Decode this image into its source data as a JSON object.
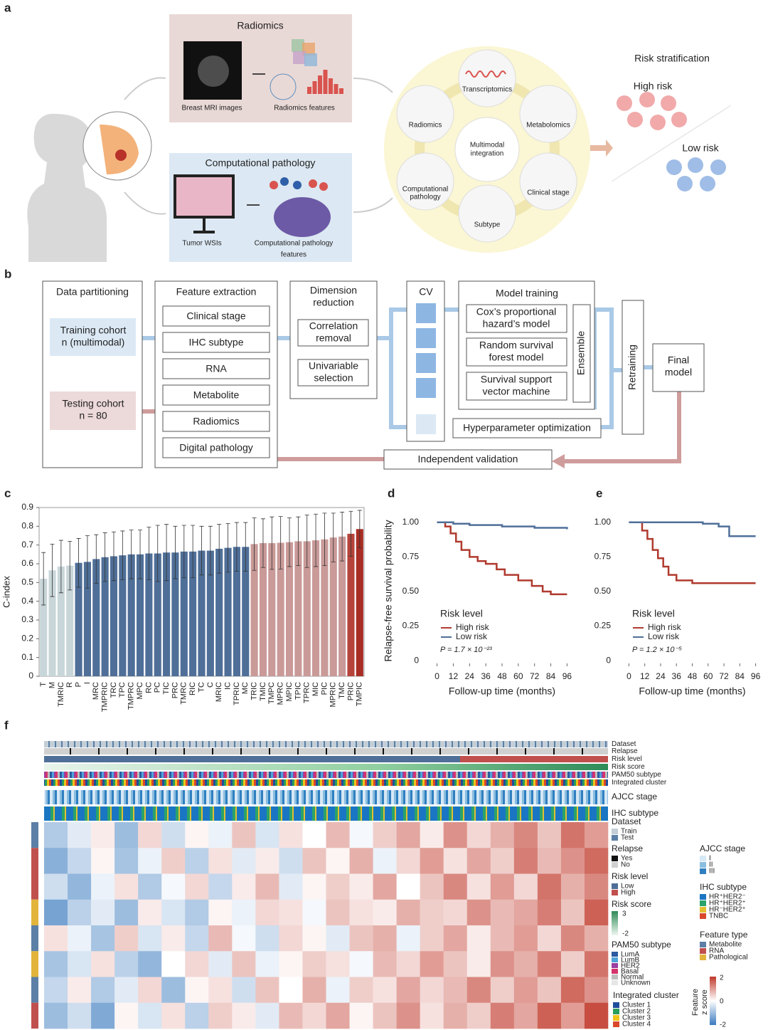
{
  "panel_labels": [
    "a",
    "b",
    "c",
    "d",
    "e",
    "f"
  ],
  "panel_a": {
    "radiomics_title": "Radiomics",
    "mri_label": "Breast MRI images",
    "radiomics_features": "Radiomics features",
    "pathology_title": "Computational pathology",
    "wsi_label": "Tumor WSIs",
    "pathology_features": [
      "Computational pathology",
      "features"
    ],
    "omics": [
      [
        "Transcriptomics"
      ],
      [
        "Metabolomics"
      ],
      [
        "Clinical stage"
      ],
      [
        "Subtype"
      ],
      [
        "Computational",
        "pathology"
      ],
      [
        "Radiomics"
      ]
    ],
    "center": [
      "Multimodal",
      "integration"
    ],
    "risk_title": "Risk stratification",
    "high": "High risk",
    "low": "Low risk"
  },
  "panel_b": {
    "partition_title": "Data partitioning",
    "training": [
      "Training cohort",
      "n (multimodal)"
    ],
    "testing": [
      "Testing cohort",
      "n = 80"
    ],
    "feature_title": "Feature extraction",
    "features": [
      "Clinical stage",
      "IHC subtype",
      "RNA",
      "Metabolite",
      "Radiomics",
      "Digital pathology"
    ],
    "dimension_title": [
      "Dimension",
      "reduction"
    ],
    "dimension_steps": [
      [
        "Correlation",
        "removal"
      ],
      [
        "Univariable",
        "selection"
      ]
    ],
    "cv": "CV",
    "model_title": "Model training",
    "models": [
      [
        "Cox’s proportional",
        "hazard’s model"
      ],
      [
        "Random survival",
        "forest model"
      ],
      [
        "Survival support",
        "vector machine"
      ]
    ],
    "ensemble": "Ensemble",
    "hyper": "Hyperparameter optimization",
    "retraining": "Retraining",
    "final": [
      "Final",
      "model"
    ],
    "validation": "Independent validation"
  },
  "chart_data": [
    {
      "type": "bar",
      "ylabel": "C-index",
      "ylim": [
        0,
        0.9
      ],
      "yticks": [
        0,
        0.1,
        0.2,
        0.3,
        0.4,
        0.5,
        0.6,
        0.7,
        0.8,
        0.9
      ],
      "categories": [
        "T",
        "M",
        "TMRIC",
        "R",
        "P",
        "I",
        "MRC",
        "TMPRIC",
        "TRC",
        "TPC",
        "TMPRC",
        "MPC",
        "RC",
        "PC",
        "TIC",
        "PRC",
        "TMRC",
        "RIC",
        "TC",
        "C",
        "MRIC",
        "IC",
        "TPRIC",
        "MC",
        "TRIC",
        "TMIC",
        "TMPC",
        "MPRC",
        "MPIC",
        "TPIC",
        "TPRC",
        "MIC",
        "PIC",
        "MPRIC",
        "TMC",
        "PRIC",
        "TMPIC"
      ],
      "values": [
        0.52,
        0.565,
        0.585,
        0.59,
        0.605,
        0.61,
        0.625,
        0.635,
        0.64,
        0.645,
        0.65,
        0.65,
        0.655,
        0.655,
        0.66,
        0.66,
        0.665,
        0.665,
        0.67,
        0.67,
        0.68,
        0.685,
        0.69,
        0.69,
        0.705,
        0.71,
        0.71,
        0.712,
        0.715,
        0.72,
        0.72,
        0.725,
        0.73,
        0.74,
        0.745,
        0.76,
        0.785
      ],
      "errors": [
        0.14,
        0.14,
        0.14,
        0.13,
        0.13,
        0.14,
        0.13,
        0.13,
        0.13,
        0.13,
        0.13,
        0.13,
        0.14,
        0.15,
        0.15,
        0.14,
        0.14,
        0.14,
        0.13,
        0.13,
        0.13,
        0.13,
        0.13,
        0.13,
        0.14,
        0.13,
        0.14,
        0.14,
        0.13,
        0.13,
        0.14,
        0.14,
        0.14,
        0.13,
        0.13,
        0.12,
        0.1
      ],
      "colors": [
        "#c8d6d9",
        "#c8d6d9",
        "#c8d6d9",
        "#c8d6d9",
        "#4f6f98",
        "#4f6f98",
        "#4f6f98",
        "#4f6f98",
        "#4f6f98",
        "#4f6f98",
        "#4f6f98",
        "#4f6f98",
        "#4f6f98",
        "#4f6f98",
        "#4f6f98",
        "#4f6f98",
        "#4f6f98",
        "#4f6f98",
        "#4f6f98",
        "#4f6f98",
        "#4f6f98",
        "#4f6f98",
        "#4f6f98",
        "#4f6f98",
        "#c99a98",
        "#c99a98",
        "#c99a98",
        "#c99a98",
        "#c99a98",
        "#c99a98",
        "#c99a98",
        "#c99a98",
        "#c99a98",
        "#c99a98",
        "#c99a98",
        "#b5433a",
        "#a82d24"
      ]
    },
    {
      "type": "line",
      "ylabel": "Relapse-free survival probability",
      "xlabel": "Follow-up time (months)",
      "legend_title": "Risk level",
      "annotation": "P = 1.7 × 10⁻²³",
      "xlim": [
        -4,
        100
      ],
      "xticks": [
        0,
        12,
        24,
        36,
        48,
        60,
        72,
        84,
        96
      ],
      "ylim": [
        -0.02,
        1.04
      ],
      "yticks": [
        0,
        0.25,
        {
          "value": 0.5,
          "label": "0.50"
        },
        0.75,
        {
          "value": 1,
          "label": "1.00"
        }
      ],
      "series": [
        {
          "name": "High risk",
          "color": "#b03a2e",
          "x": [
            0,
            6,
            10,
            14,
            18,
            24,
            30,
            36,
            44,
            50,
            60,
            70,
            78,
            84,
            96
          ],
          "values": [
            1,
            0.97,
            0.92,
            0.86,
            0.8,
            0.75,
            0.72,
            0.7,
            0.66,
            0.62,
            0.58,
            0.54,
            0.5,
            0.48,
            0.48
          ]
        },
        {
          "name": "Low risk",
          "color": "#4f6f98",
          "x": [
            0,
            12,
            24,
            48,
            72,
            96
          ],
          "values": [
            1,
            0.99,
            0.98,
            0.97,
            0.96,
            0.95
          ]
        }
      ]
    },
    {
      "type": "line",
      "xlabel": "Follow-up time (months)",
      "legend_title": "Risk level",
      "annotation": "P = 1.2 × 10⁻⁵",
      "xlim": [
        -4,
        100
      ],
      "xticks": [
        0,
        12,
        24,
        36,
        48,
        60,
        72,
        84,
        96
      ],
      "ylim": [
        -0.02,
        1.04
      ],
      "yticks": [
        0,
        0.25,
        {
          "value": 0.5,
          "label": "0.50"
        },
        0.75,
        {
          "value": 1,
          "label": "1.00"
        }
      ],
      "series": [
        {
          "name": "High risk",
          "color": "#b03a2e",
          "x": [
            0,
            10,
            14,
            18,
            22,
            26,
            30,
            36,
            48,
            60,
            96
          ],
          "values": [
            1,
            0.94,
            0.88,
            0.8,
            0.74,
            0.68,
            0.62,
            0.58,
            0.56,
            0.56,
            0.56
          ]
        },
        {
          "name": "Low risk",
          "color": "#4f6f98",
          "x": [
            0,
            24,
            56,
            68,
            76,
            96
          ],
          "values": [
            1,
            1,
            0.99,
            0.97,
            0.9,
            0.9
          ]
        }
      ]
    }
  ],
  "heatmap": {
    "tracks": [
      "Dataset",
      "Relapse",
      "Risk level",
      "Risk score",
      "PAM50 subtype",
      "Integrated cluster",
      "AJCC stage",
      "IHC subtype"
    ],
    "row_colors": [
      "#5b7fa6",
      "#c0504d",
      "#c0504d",
      "#e2b43b",
      "#5b7fa6",
      "#e2b43b",
      "#5b7fa6",
      "#c0504d"
    ],
    "values": [
      [
        -0.8,
        -0.3,
        0.2,
        -1.0,
        0.4,
        -0.5,
        0.1,
        -0.2,
        0.6,
        -0.4,
        0.3,
        0.0,
        0.7,
        -0.1,
        0.5,
        0.9,
        0.2,
        1.1,
        0.4,
        0.8,
        1.2,
        0.6,
        1.4,
        1.0
      ],
      [
        -1.2,
        -0.6,
        0.1,
        -0.9,
        -0.2,
        0.5,
        -0.7,
        0.3,
        -0.3,
        0.2,
        -0.5,
        0.6,
        0.1,
        0.8,
        -0.2,
        0.4,
        1.0,
        0.3,
        0.9,
        0.5,
        1.3,
        0.7,
        1.1,
        1.5
      ],
      [
        -0.5,
        -1.1,
        -0.2,
        0.3,
        -0.8,
        -0.1,
        0.4,
        -0.6,
        0.2,
        0.7,
        -0.3,
        0.1,
        0.5,
        0.2,
        0.9,
        0.0,
        0.6,
        1.2,
        0.3,
        1.0,
        0.4,
        1.4,
        0.8,
        1.2
      ],
      [
        -1.4,
        -0.7,
        -0.3,
        -1.0,
        0.2,
        -0.4,
        -0.8,
        0.1,
        -0.2,
        0.4,
        0.3,
        -0.1,
        0.6,
        0.3,
        0.2,
        0.8,
        0.5,
        0.4,
        1.1,
        0.7,
        0.9,
        1.3,
        0.6,
        1.6
      ],
      [
        0.3,
        -0.2,
        -0.9,
        0.5,
        -0.4,
        0.2,
        -0.6,
        0.7,
        -0.1,
        -0.5,
        0.4,
        0.1,
        -0.3,
        0.6,
        0.8,
        -0.2,
        0.5,
        0.9,
        0.2,
        0.7,
        1.0,
        0.4,
        1.2,
        0.8
      ],
      [
        -0.9,
        -0.4,
        0.3,
        -0.7,
        -1.1,
        0.0,
        0.4,
        -0.3,
        0.6,
        -0.2,
        0.1,
        0.5,
        0.3,
        -0.1,
        0.7,
        0.4,
        1.0,
        0.6,
        0.2,
        1.1,
        0.8,
        1.3,
        0.5,
        1.4
      ],
      [
        -0.6,
        0.2,
        -0.8,
        -0.3,
        0.4,
        -1.0,
        0.1,
        0.3,
        -0.5,
        0.6,
        0.0,
        0.8,
        -0.2,
        0.5,
        0.3,
        0.9,
        0.4,
        0.7,
        1.2,
        0.5,
        1.0,
        0.6,
        1.5,
        1.1
      ],
      [
        -1.0,
        -0.5,
        -1.3,
        0.1,
        -0.4,
        0.3,
        -0.7,
        0.5,
        0.2,
        -0.3,
        0.7,
        0.4,
        0.9,
        0.1,
        0.6,
        1.1,
        0.3,
        0.8,
        0.5,
        1.3,
        0.9,
        1.6,
        1.0,
        1.8
      ]
    ],
    "legends": [
      {
        "title": "Dataset",
        "items": [
          "Train",
          "Test"
        ],
        "colors": [
          "#c3ced6",
          "#5b7fa6"
        ]
      },
      {
        "title": "Relapse",
        "items": [
          "Yes",
          "No"
        ],
        "colors": [
          "#111111",
          "#d0d0d0"
        ]
      },
      {
        "title": "Risk level",
        "items": [
          "Low",
          "High"
        ],
        "colors": [
          "#4f6f98",
          "#c0504d"
        ]
      },
      {
        "title": "PAM50 subtype",
        "items": [
          "LumA",
          "LumB",
          "HER2",
          "Basal",
          "Normal",
          "Unknown"
        ],
        "colors": [
          "#2c5aa0",
          "#4fa3d9",
          "#9b3fa0",
          "#d6336c",
          "#bdbdbd",
          "#e6e6e6"
        ]
      },
      {
        "title": "Integrated cluster",
        "items": [
          "Cluster 1",
          "Cluster 2",
          "Cluster 3",
          "Cluster 4"
        ],
        "colors": [
          "#1f4e9c",
          "#2a9d5c",
          "#f0c419",
          "#d9482b"
        ]
      },
      {
        "title": "AJCC stage",
        "items": [
          "I",
          "II",
          "III"
        ],
        "colors": [
          "#d6e8f5",
          "#8bbde0",
          "#2f7fc0"
        ]
      },
      {
        "title": "IHC subtype",
        "items": [
          "HR⁺HER2⁻",
          "HR⁺HER2⁺",
          "HR⁻HER2⁺",
          "TNBC"
        ],
        "colors": [
          "#1a76c2",
          "#2aa36b",
          "#e2c031",
          "#d9482b"
        ]
      },
      {
        "title": "Feature type",
        "items": [
          "Metabolite",
          "RNA",
          "Pathological"
        ],
        "colors": [
          "#5b7fa6",
          "#c0504d",
          "#e2b43b"
        ]
      }
    ],
    "risk_score_title": "Risk score",
    "risk_score_ticks": [
      3,
      -2
    ],
    "scale_title": [
      "Feature",
      "z score"
    ],
    "scale_ticks": [
      2,
      0,
      -2
    ]
  }
}
